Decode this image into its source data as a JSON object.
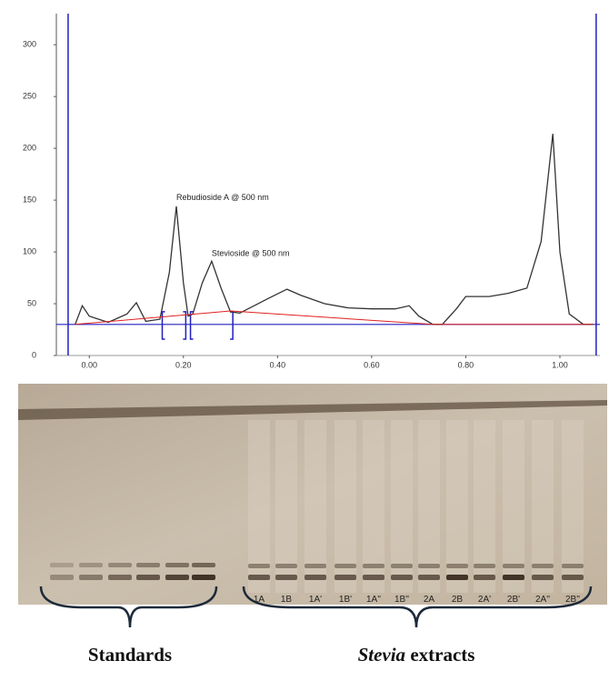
{
  "chart_data": {
    "type": "line",
    "x": [
      -0.03,
      -0.015,
      0.0,
      0.04,
      0.08,
      0.1,
      0.12,
      0.15,
      0.17,
      0.185,
      0.2,
      0.21,
      0.22,
      0.24,
      0.26,
      0.28,
      0.3,
      0.32,
      0.35,
      0.38,
      0.42,
      0.45,
      0.5,
      0.55,
      0.6,
      0.65,
      0.68,
      0.7,
      0.73,
      0.75,
      0.78,
      0.8,
      0.85,
      0.89,
      0.93,
      0.96,
      0.985,
      1.0,
      1.02,
      1.05,
      1.07
    ],
    "series": [
      {
        "color": "#333333",
        "values": [
          30,
          48,
          38,
          32,
          40,
          51,
          33,
          35,
          80,
          144,
          70,
          38,
          40,
          70,
          91,
          65,
          42,
          41,
          48,
          55,
          64,
          58,
          50,
          46,
          45,
          45,
          48,
          38,
          30,
          30,
          45,
          57,
          57,
          60,
          65,
          110,
          214,
          100,
          40,
          30,
          30
        ]
      },
      {
        "color": "#e02020",
        "x": [
          -0.03,
          0.3,
          0.73,
          1.07
        ],
        "values": [
          30,
          43,
          30,
          30
        ]
      }
    ],
    "hline": 30,
    "hline_color": "#2020c0",
    "vlines": [
      -0.045,
      1.077
    ],
    "xlim": [
      -0.07,
      1.085
    ],
    "ylim": [
      0,
      330
    ],
    "xticks": [
      {
        "value": 0,
        "label": "0.00"
      },
      {
        "value": 0.2,
        "label": "0.20"
      },
      {
        "value": 0.4,
        "label": "0.40"
      },
      {
        "value": 0.6,
        "label": "0.60"
      },
      {
        "value": 0.8,
        "label": "0.80"
      },
      {
        "value": 1,
        "label": "1.00"
      }
    ],
    "yticks": [
      0,
      50,
      100,
      150,
      200,
      250,
      300
    ],
    "annotations": [
      {
        "text": "Rebudioside A @ 500 nm",
        "x": 0.185,
        "y": 150
      },
      {
        "text": "Stevioside  @ 500 nm",
        "x": 0.26,
        "y": 96
      }
    ]
  },
  "plate": {
    "lanes": [
      "1A",
      "1B",
      "1A'",
      "1B'",
      "1A''",
      "1B''",
      "2A",
      "2B",
      "2A'",
      "2B'",
      "2A''",
      "2B''"
    ],
    "standards_label": "Standards",
    "extracts_label": {
      "italic": "Stevia",
      "rest": " extracts"
    }
  }
}
